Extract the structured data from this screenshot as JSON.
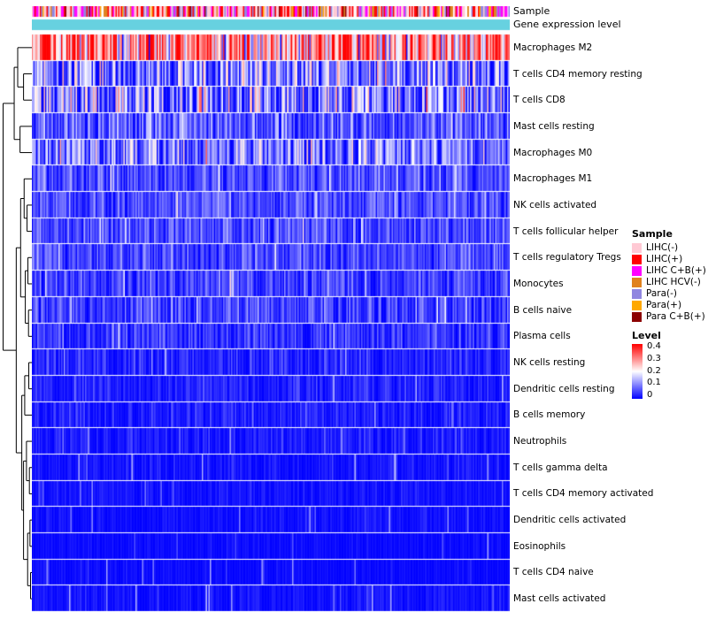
{
  "chart_data": {
    "type": "heatmap",
    "seed": 1337,
    "n_columns": 360,
    "colormap": {
      "min": 0,
      "max": 0.4,
      "low_color": "#0000FF",
      "mid_color": "#FFFFFF",
      "high_color": "#FF0000"
    },
    "top_annotations": [
      {
        "label": "Sample",
        "type": "categorical"
      },
      {
        "label": "Gene expression level",
        "type": "uniform",
        "color": "#67D1E0"
      }
    ],
    "sample_weights": [
      0.28,
      0.2,
      0.17,
      0.06,
      0.17,
      0.06,
      0.06
    ],
    "rows": [
      {
        "label": "Macrophages M2",
        "mean": 0.3,
        "spread": 0.2
      },
      {
        "label": "T cells CD4 memory resting",
        "mean": 0.1,
        "spread": 0.14
      },
      {
        "label": "T cells CD8",
        "mean": 0.1,
        "spread": 0.16
      },
      {
        "label": "Mast cells resting",
        "mean": 0.07,
        "spread": 0.08
      },
      {
        "label": "Macrophages M0",
        "mean": 0.09,
        "spread": 0.12
      },
      {
        "label": "Macrophages M1",
        "mean": 0.06,
        "spread": 0.07
      },
      {
        "label": "NK cells activated",
        "mean": 0.055,
        "spread": 0.06
      },
      {
        "label": "T cells follicular helper",
        "mean": 0.055,
        "spread": 0.06
      },
      {
        "label": "T cells regulatory  Tregs",
        "mean": 0.05,
        "spread": 0.06
      },
      {
        "label": "Monocytes",
        "mean": 0.045,
        "spread": 0.06
      },
      {
        "label": "B cells naive",
        "mean": 0.045,
        "spread": 0.07
      },
      {
        "label": "Plasma cells",
        "mean": 0.04,
        "spread": 0.06
      },
      {
        "label": "NK cells resting",
        "mean": 0.025,
        "spread": 0.04
      },
      {
        "label": "Dendritic cells resting",
        "mean": 0.02,
        "spread": 0.035
      },
      {
        "label": "B cells memory",
        "mean": 0.018,
        "spread": 0.035
      },
      {
        "label": "Neutrophils",
        "mean": 0.015,
        "spread": 0.03
      },
      {
        "label": "T cells gamma delta",
        "mean": 0.01,
        "spread": 0.025
      },
      {
        "label": "T cells CD4 memory activated",
        "mean": 0.01,
        "spread": 0.02
      },
      {
        "label": "Dendritic cells activated",
        "mean": 0.008,
        "spread": 0.018
      },
      {
        "label": "Eosinophils",
        "mean": 0.005,
        "spread": 0.012
      },
      {
        "label": "T cells CD4 naive",
        "mean": 0.005,
        "spread": 0.012
      },
      {
        "label": "Mast cells activated",
        "mean": 0.01,
        "spread": 0.02
      }
    ],
    "legends": {
      "sample": {
        "title": "Sample",
        "entries": [
          {
            "label": "LIHC(-)",
            "color": "#FFC9D4"
          },
          {
            "label": "LIHC(+)",
            "color": "#FF0000"
          },
          {
            "label": "LIHC C+B(+)",
            "color": "#FF00FF"
          },
          {
            "label": "LIHC HCV(-)",
            "color": "#E0821E"
          },
          {
            "label": "Para(-)",
            "color": "#9086E0"
          },
          {
            "label": "Para(+)",
            "color": "#FFA800"
          },
          {
            "label": "Para C+B(+)",
            "color": "#8B0000"
          }
        ]
      },
      "level": {
        "title": "Level",
        "tick_labels": [
          "0.4",
          "0.3",
          "0.2",
          "0.1",
          "0"
        ]
      }
    },
    "dendrogram": {
      "h": 1.0,
      "c": [
        {
          "h": 0.62,
          "c": [
            {
              "h": 0.5,
              "c": [
                {
                  "leaf": 0
                },
                {
                  "h": 0.3,
                  "c": [
                    {
                      "leaf": 1
                    },
                    {
                      "leaf": 2
                    }
                  ]
                }
              ]
            },
            {
              "h": 0.42,
              "c": [
                {
                  "leaf": 3
                },
                {
                  "leaf": 4
                }
              ]
            }
          ]
        },
        {
          "h": 0.55,
          "c": [
            {
              "h": 0.4,
              "c": [
                {
                  "h": 0.28,
                  "c": [
                    {
                      "leaf": 5
                    },
                    {
                      "h": 0.18,
                      "c": [
                        {
                          "leaf": 6
                        },
                        {
                          "leaf": 7
                        }
                      ]
                    }
                  ]
                },
                {
                  "h": 0.24,
                  "c": [
                    {
                      "h": 0.15,
                      "c": [
                        {
                          "leaf": 8
                        },
                        {
                          "leaf": 9
                        }
                      ]
                    },
                    {
                      "h": 0.13,
                      "c": [
                        {
                          "leaf": 10
                        },
                        {
                          "leaf": 11
                        }
                      ]
                    }
                  ]
                }
              ]
            },
            {
              "h": 0.36,
              "c": [
                {
                  "h": 0.26,
                  "c": [
                    {
                      "h": 0.12,
                      "c": [
                        {
                          "leaf": 12
                        },
                        {
                          "leaf": 13
                        }
                      ]
                    },
                    {
                      "leaf": 14
                    }
                  ]
                },
                {
                  "h": 0.3,
                  "c": [
                    {
                      "h": 0.2,
                      "c": [
                        {
                          "leaf": 15
                        },
                        {
                          "h": 0.1,
                          "c": [
                            {
                              "leaf": 16
                            },
                            {
                              "leaf": 17
                            }
                          ]
                        }
                      ]
                    },
                    {
                      "h": 0.16,
                      "c": [
                        {
                          "h": 0.08,
                          "c": [
                            {
                              "leaf": 18
                            },
                            {
                              "leaf": 19
                            }
                          ]
                        },
                        {
                          "h": 0.06,
                          "c": [
                            {
                              "leaf": 20
                            },
                            {
                              "leaf": 21
                            }
                          ]
                        }
                      ]
                    }
                  ]
                }
              ]
            }
          ]
        }
      ]
    }
  }
}
